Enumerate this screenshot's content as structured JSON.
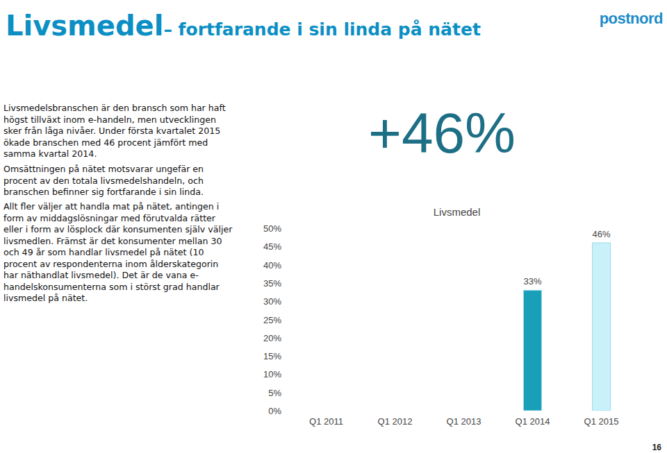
{
  "slide": {
    "title": "Livsmedel",
    "subtitle": "– fortfarande i sin linda på nätet",
    "logo": "postnord",
    "paragraphs": [
      "Livsmedelsbranschen är den bransch som har haft högst tillväxt inom e-handeln, men utvecklingen sker från låga nivåer. Under första kvartalet 2015 ökade branschen med 46 procent jämfört med samma kvartal 2014.",
      "Omsättningen på nätet motsvarar ungefär en procent av den totala livsmedelshandeln, och branschen befinner sig fortfarande i sin linda.",
      "Allt fler väljer att handla mat på nätet, antingen i form av middagslösningar med förutvalda rätter eller i form av lösplock där konsumenten själv väljer livsmedlen. Främst är det konsumenter mellan 30 och 49 år som handlar livsmedel på nätet (10 procent av respondenterna inom ålderskategorin har näthandlat livsmedel). Det är de vana e-handelskonsumenterna som i störst grad handlar livsmedel på nätet."
    ],
    "highlight": "+46%",
    "page": "16"
  },
  "chart_data": {
    "type": "bar",
    "title": "Livsmedel",
    "categories": [
      "Q1 2011",
      "Q1 2012",
      "Q1 2013",
      "Q1 2014",
      "Q1 2015"
    ],
    "values": [
      null,
      null,
      null,
      33,
      46
    ],
    "value_labels": [
      null,
      null,
      null,
      "33%",
      "46%"
    ],
    "colors": [
      "#1a9fb8",
      "#1a9fb8",
      "#1a9fb8",
      "#1a9fb8",
      "#c8f1fa"
    ],
    "data_labels": true,
    "grid": false,
    "ylim": [
      0,
      50
    ],
    "yticks": [
      {
        "value": 0,
        "label": "0%"
      },
      {
        "value": 5,
        "label": "5%"
      },
      {
        "value": 10,
        "label": "10%"
      },
      {
        "value": 15,
        "label": "15%"
      },
      {
        "value": 20,
        "label": "20%"
      },
      {
        "value": 25,
        "label": "25%"
      },
      {
        "value": 30,
        "label": "30%"
      },
      {
        "value": 35,
        "label": "35%"
      },
      {
        "value": 40,
        "label": "40%"
      },
      {
        "value": 45,
        "label": "45%"
      },
      {
        "value": 50,
        "label": "50%"
      }
    ]
  }
}
